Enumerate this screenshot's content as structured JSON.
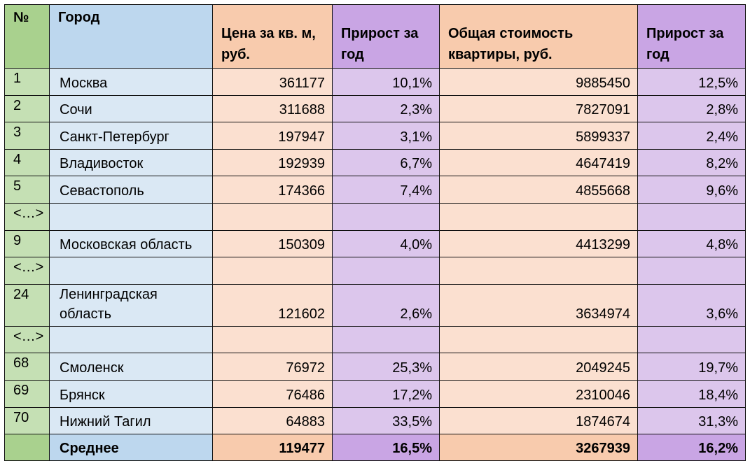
{
  "headers": {
    "num": "№",
    "city": "Город",
    "price": "Цена за кв. м, руб.",
    "growth1": "Прирост за год",
    "total": "Общая стоимость квартиры, руб.",
    "growth2": "Прирост за год"
  },
  "rows": [
    {
      "num": "1",
      "city": "Москва",
      "price": "361177",
      "growth1": "10,1%",
      "total": "9885450",
      "growth2": "12,5%"
    },
    {
      "num": "2",
      "city": "Сочи",
      "price": "311688",
      "growth1": "2,3%",
      "total": "7827091",
      "growth2": "2,8%"
    },
    {
      "num": "3",
      "city": "Санкт-Петербург",
      "price": "197947",
      "growth1": "3,1%",
      "total": "5899337",
      "growth2": "2,4%"
    },
    {
      "num": "4",
      "city": "Владивосток",
      "price": "192939",
      "growth1": "6,7%",
      "total": "4647419",
      "growth2": "8,2%"
    },
    {
      "num": "5",
      "city": "Севастополь",
      "price": "174366",
      "growth1": "7,4%",
      "total": "4855668",
      "growth2": "9,6%"
    },
    {
      "num": "<…>",
      "city": "",
      "price": "",
      "growth1": "",
      "total": "",
      "growth2": ""
    },
    {
      "num": "9",
      "city": "Московская область",
      "price": "150309",
      "growth1": "4,0%",
      "total": "4413299",
      "growth2": "4,8%"
    },
    {
      "num": "<…>",
      "city": "",
      "price": "",
      "growth1": "",
      "total": "",
      "growth2": ""
    },
    {
      "num": "24",
      "city": "Ленинградская область",
      "price": "121602",
      "growth1": "2,6%",
      "total": "3634974",
      "growth2": "3,6%"
    },
    {
      "num": "<…>",
      "city": "",
      "price": "",
      "growth1": "",
      "total": "",
      "growth2": ""
    },
    {
      "num": "68",
      "city": "Смоленск",
      "price": "76972",
      "growth1": "25,3%",
      "total": "2049245",
      "growth2": "19,7%"
    },
    {
      "num": "69",
      "city": "Брянск",
      "price": "76486",
      "growth1": "17,2%",
      "total": "2310046",
      "growth2": "18,4%"
    },
    {
      "num": "70",
      "city": "Нижний Тагил",
      "price": "64883",
      "growth1": "33,5%",
      "total": "1874674",
      "growth2": "31,3%"
    }
  ],
  "footer": {
    "num": "",
    "city": "Среднее",
    "price": "119477",
    "growth1": "16,5%",
    "total": "3267939",
    "growth2": "16,2%"
  },
  "colors": {
    "num_col": "#c5e0b4",
    "city_col": "#dae8f4",
    "price_col": "#fbe0d0",
    "growth_col": "#dcc6ec"
  }
}
